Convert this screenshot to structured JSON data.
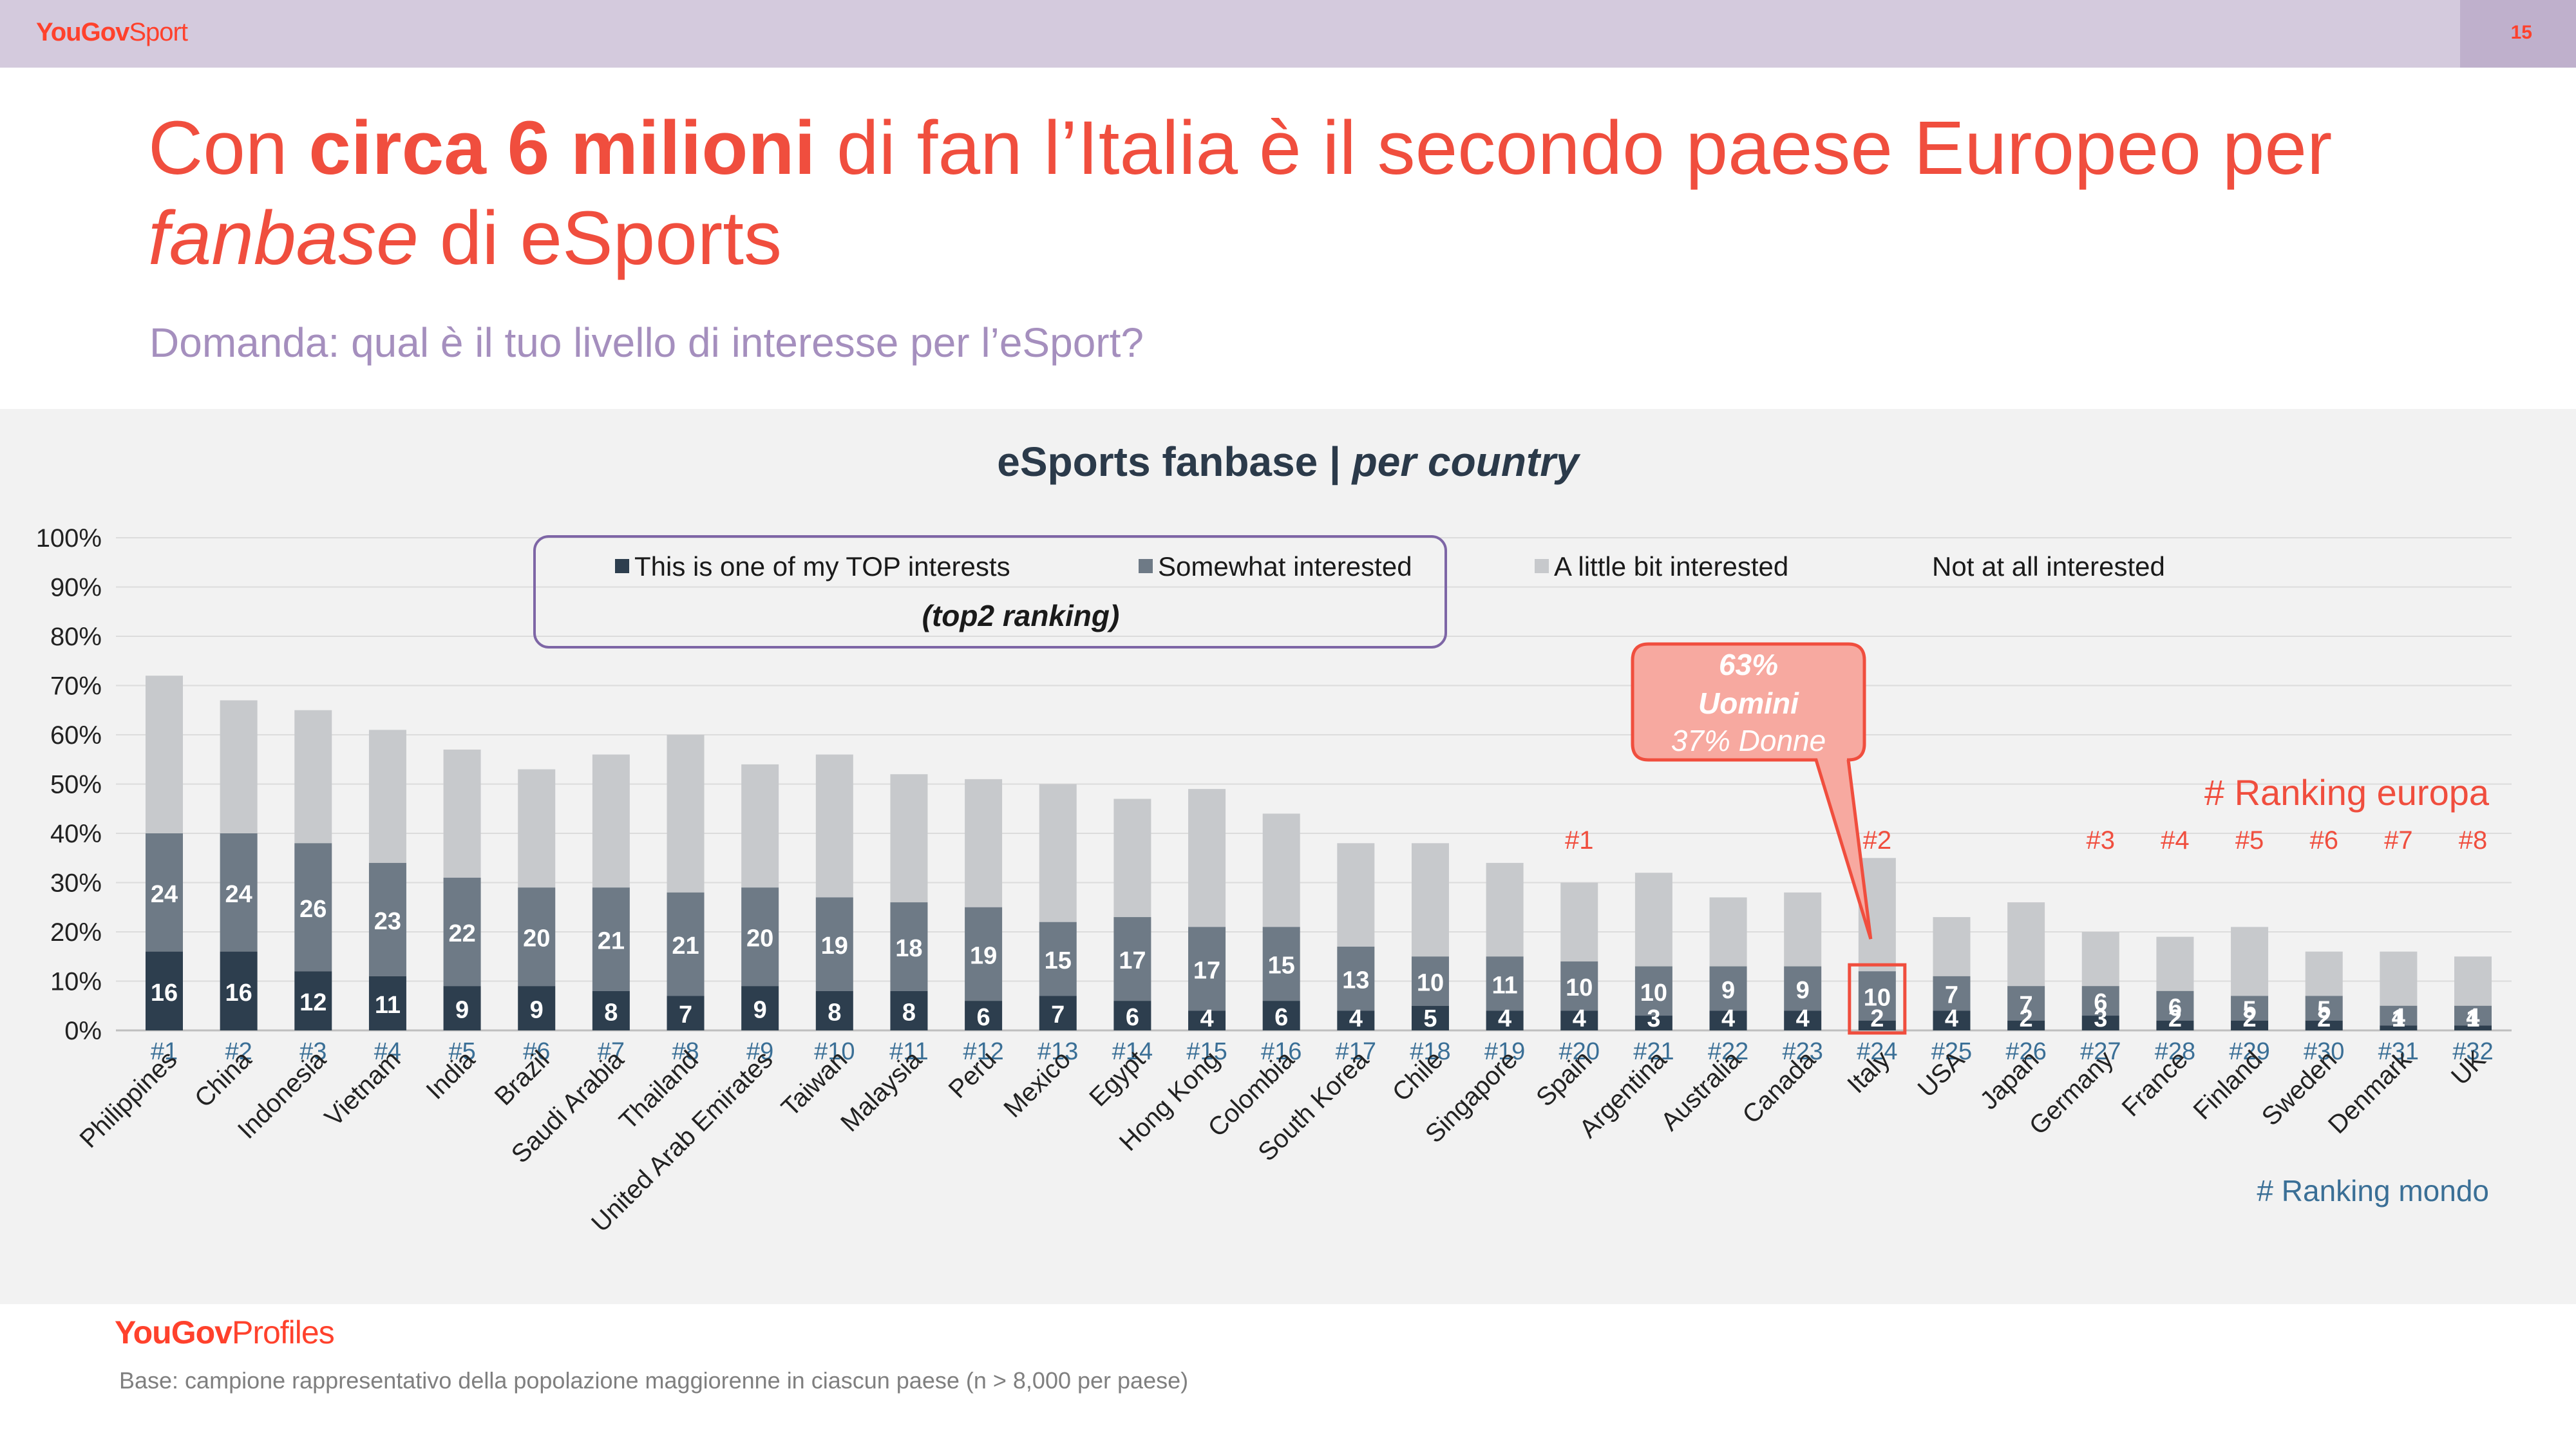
{
  "header": {
    "brand_bold": "YouGov",
    "brand_light": "Sport",
    "page_number": "15"
  },
  "headline": {
    "part1": "Con ",
    "bold": "circa 6 milioni",
    "part2": " di fan l’Italia è il secondo paese Europeo per ",
    "italic": "fanbase",
    "part3": " di eSports"
  },
  "subheadline": "Domanda: qual è il tuo livello di interesse per l’eSport?",
  "chart_title": {
    "main": "eSports fanbase | ",
    "italic": "per country"
  },
  "legend": {
    "items": [
      "This is one of my TOP interests",
      "Somewhat interested",
      "A little bit interested",
      "Not at all interested"
    ],
    "note": "(top2 ranking)"
  },
  "callout": {
    "line1": "63%",
    "line2": "Uomini",
    "line3": "37% Donne"
  },
  "europe_ranking_label": "# Ranking europa",
  "world_ranking_label": "# Ranking mondo",
  "colors": {
    "top": "#2d3e4e",
    "somewhat": "#6e7a86",
    "little": "#c7c9cc",
    "accent": "#f04e3e",
    "rank_world": "#3a6f96"
  },
  "chart_data": {
    "type": "bar",
    "stacked": true,
    "ylim": [
      0,
      100
    ],
    "yticks": [
      "0%",
      "10%",
      "20%",
      "30%",
      "40%",
      "50%",
      "60%",
      "70%",
      "80%",
      "90%",
      "100%"
    ],
    "categories": [
      "Philippines",
      "China",
      "Indonesia",
      "Vietnam",
      "India",
      "Brazil",
      "Saudi Arabia",
      "Thailand",
      "United Arab Emirates",
      "Taiwan",
      "Malaysia",
      "Peru",
      "Mexico",
      "Egypt",
      "Hong Kong",
      "Colombia",
      "South Korea",
      "Chile",
      "Singapore",
      "Spain",
      "Argentina",
      "Australia",
      "Canada",
      "Italy",
      "USA",
      "Japan",
      "Germany",
      "France",
      "Finland",
      "Sweden",
      "Denmark",
      "UK"
    ],
    "world_ranks": [
      "#1",
      "#2",
      "#3",
      "#4",
      "#5",
      "#6",
      "#7",
      "#8",
      "#9",
      "#10",
      "#11",
      "#12",
      "#13",
      "#14",
      "#15",
      "#16",
      "#17",
      "#18",
      "#19",
      "#20",
      "#21",
      "#22",
      "#23",
      "#24",
      "#25",
      "#26",
      "#27",
      "#28",
      "#29",
      "#30",
      "#31",
      "#32"
    ],
    "europe_ranks": [
      "",
      "",
      "",
      "",
      "",
      "",
      "",
      "",
      "",
      "",
      "",
      "",
      "",
      "",
      "",
      "",
      "",
      "",
      "",
      "#1",
      "",
      "",
      "",
      "#2",
      "",
      "",
      "#3",
      "#4",
      "#5",
      "#6",
      "#7",
      "#8"
    ],
    "highlight_category": "Italy",
    "series": [
      {
        "name": "This is one of my TOP interests",
        "values": [
          16,
          16,
          12,
          11,
          9,
          9,
          8,
          7,
          9,
          8,
          8,
          6,
          7,
          6,
          4,
          6,
          4,
          5,
          4,
          4,
          3,
          4,
          4,
          2,
          4,
          2,
          3,
          2,
          2,
          2,
          1,
          1
        ]
      },
      {
        "name": "Somewhat interested",
        "values": [
          24,
          24,
          26,
          23,
          22,
          20,
          21,
          21,
          20,
          19,
          18,
          19,
          15,
          17,
          17,
          15,
          13,
          10,
          11,
          10,
          10,
          9,
          9,
          10,
          7,
          7,
          6,
          6,
          5,
          5,
          4,
          4
        ]
      },
      {
        "name": "A little bit interested",
        "values": [
          32,
          27,
          27,
          27,
          26,
          24,
          27,
          32,
          25,
          29,
          26,
          26,
          28,
          24,
          28,
          23,
          21,
          23,
          19,
          16,
          19,
          14,
          15,
          23,
          12,
          17,
          11,
          11,
          14,
          9,
          11,
          10
        ]
      }
    ]
  },
  "footer": {
    "logo_bold": "YouGov",
    "logo_light": "Profiles",
    "base_note": "Base: campione rappresentativo della popolazione maggiorenne in ciascun paese (n > 8,000 per paese)"
  }
}
